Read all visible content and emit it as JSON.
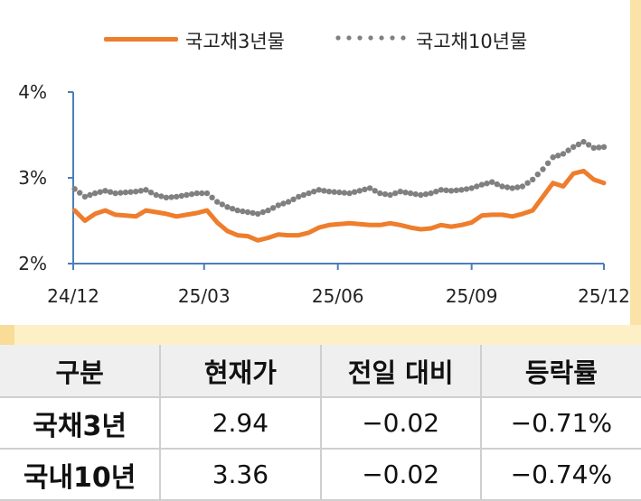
{
  "colors": {
    "series_3y": "#ee7d2c",
    "series_10y": "#808080",
    "axis": "#4a7ebb",
    "accent_band": "#fdf0c7"
  },
  "legend": {
    "s3y": "국고채3년물",
    "s10y": "국고채10년물"
  },
  "chart_data": {
    "type": "line",
    "x_tick_labels": [
      "24/12",
      "25/03",
      "25/06",
      "25/09",
      "25/12"
    ],
    "y_tick_labels": [
      "4%",
      "3%",
      "2%"
    ],
    "ylim": [
      2,
      4
    ],
    "grid": false,
    "legend_position": "top",
    "series": [
      {
        "name": "국고채3년물",
        "style": "solid",
        "color": "#ee7d2c",
        "x": [
          "2024-12-02",
          "2024-12-09",
          "2024-12-16",
          "2024-12-23",
          "2024-12-30",
          "2025-01-06",
          "2025-01-13",
          "2025-01-20",
          "2025-01-27",
          "2025-02-03",
          "2025-02-10",
          "2025-02-17",
          "2025-02-24",
          "2025-03-03",
          "2025-03-10",
          "2025-03-17",
          "2025-03-24",
          "2025-03-31",
          "2025-04-07",
          "2025-04-14",
          "2025-04-21",
          "2025-04-28",
          "2025-05-05",
          "2025-05-12",
          "2025-05-19",
          "2025-05-26",
          "2025-06-02",
          "2025-06-09",
          "2025-06-16",
          "2025-06-23",
          "2025-06-30",
          "2025-07-07",
          "2025-07-14",
          "2025-07-21",
          "2025-07-28",
          "2025-08-04",
          "2025-08-11",
          "2025-08-18",
          "2025-08-25",
          "2025-09-01",
          "2025-09-08",
          "2025-09-15",
          "2025-09-22",
          "2025-09-29",
          "2025-10-06",
          "2025-10-13",
          "2025-10-20",
          "2025-10-27",
          "2025-11-03",
          "2025-11-10",
          "2025-11-17",
          "2025-11-24",
          "2025-12-01"
        ],
        "values": [
          2.62,
          2.5,
          2.58,
          2.62,
          2.57,
          2.56,
          2.55,
          2.62,
          2.6,
          2.58,
          2.55,
          2.57,
          2.59,
          2.62,
          2.48,
          2.38,
          2.33,
          2.32,
          2.27,
          2.3,
          2.34,
          2.33,
          2.33,
          2.36,
          2.42,
          2.45,
          2.46,
          2.47,
          2.46,
          2.45,
          2.45,
          2.47,
          2.45,
          2.42,
          2.4,
          2.41,
          2.45,
          2.43,
          2.45,
          2.48,
          2.56,
          2.57,
          2.57,
          2.55,
          2.58,
          2.62,
          2.78,
          2.94,
          2.9,
          3.05,
          3.08,
          2.98,
          2.94
        ]
      },
      {
        "name": "국고채10년물",
        "style": "dotted",
        "color": "#808080",
        "x": [
          "2024-12-02",
          "2024-12-09",
          "2024-12-16",
          "2024-12-23",
          "2024-12-30",
          "2025-01-06",
          "2025-01-13",
          "2025-01-20",
          "2025-01-27",
          "2025-02-03",
          "2025-02-10",
          "2025-02-17",
          "2025-02-24",
          "2025-03-03",
          "2025-03-10",
          "2025-03-17",
          "2025-03-24",
          "2025-03-31",
          "2025-04-07",
          "2025-04-14",
          "2025-04-21",
          "2025-04-28",
          "2025-05-05",
          "2025-05-12",
          "2025-05-19",
          "2025-05-26",
          "2025-06-02",
          "2025-06-09",
          "2025-06-16",
          "2025-06-23",
          "2025-06-30",
          "2025-07-07",
          "2025-07-14",
          "2025-07-21",
          "2025-07-28",
          "2025-08-04",
          "2025-08-11",
          "2025-08-18",
          "2025-08-25",
          "2025-09-01",
          "2025-09-08",
          "2025-09-15",
          "2025-09-22",
          "2025-09-29",
          "2025-10-06",
          "2025-10-13",
          "2025-10-20",
          "2025-10-27",
          "2025-11-03",
          "2025-11-10",
          "2025-11-17",
          "2025-11-24",
          "2025-12-01"
        ],
        "values": [
          2.87,
          2.78,
          2.82,
          2.85,
          2.82,
          2.83,
          2.84,
          2.86,
          2.8,
          2.77,
          2.78,
          2.8,
          2.82,
          2.82,
          2.72,
          2.66,
          2.62,
          2.6,
          2.58,
          2.62,
          2.68,
          2.72,
          2.78,
          2.82,
          2.86,
          2.84,
          2.83,
          2.82,
          2.85,
          2.88,
          2.82,
          2.8,
          2.84,
          2.82,
          2.8,
          2.82,
          2.86,
          2.85,
          2.86,
          2.88,
          2.92,
          2.95,
          2.9,
          2.88,
          2.9,
          2.98,
          3.1,
          3.24,
          3.28,
          3.36,
          3.42,
          3.35,
          3.36
        ]
      }
    ]
  },
  "table": {
    "headers": [
      "구분",
      "현재가",
      "전일 대비",
      "등락률"
    ],
    "rows": [
      [
        "국채3년",
        "2.94",
        "−0.02",
        "−0.71%"
      ],
      [
        "국내10년",
        "3.36",
        "−0.02",
        "−0.74%"
      ]
    ]
  }
}
